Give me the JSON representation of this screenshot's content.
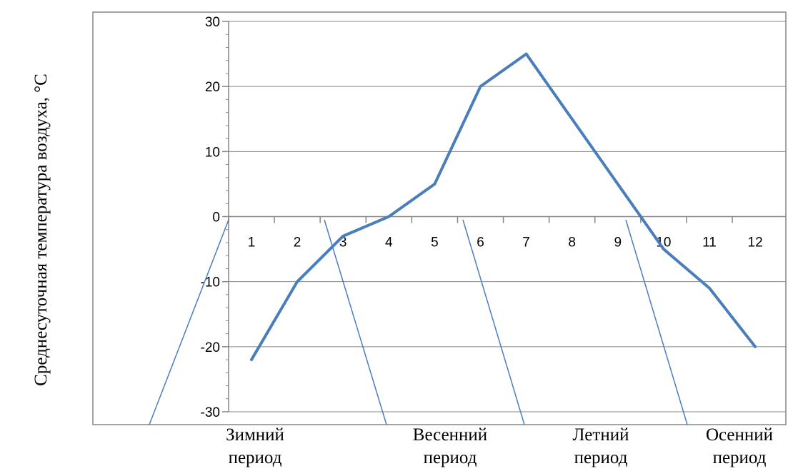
{
  "chart_data": {
    "type": "line",
    "ylabel": "Среднесуточная температура воздуха, °С",
    "ylim": [
      -30,
      30
    ],
    "y_ticks": [
      30,
      20,
      10,
      0,
      -10,
      -20,
      -30
    ],
    "categories": [
      "1",
      "2",
      "3",
      "4",
      "5",
      "6",
      "7",
      "8",
      "9",
      "10",
      "11",
      "12"
    ],
    "series": [
      {
        "values": [
          -22,
          -10,
          -3,
          0,
          5,
          20,
          25,
          15,
          5,
          -5,
          -11,
          -20
        ]
      }
    ],
    "line_color": "#4a7ebb",
    "grid": "horizontal",
    "periods": [
      {
        "line1": "Зимний",
        "line2": "период"
      },
      {
        "line1": "Весенний",
        "line2": "период"
      },
      {
        "line1": "Летний",
        "line2": "период"
      },
      {
        "line1": "Осенний",
        "line2": "период"
      }
    ]
  }
}
